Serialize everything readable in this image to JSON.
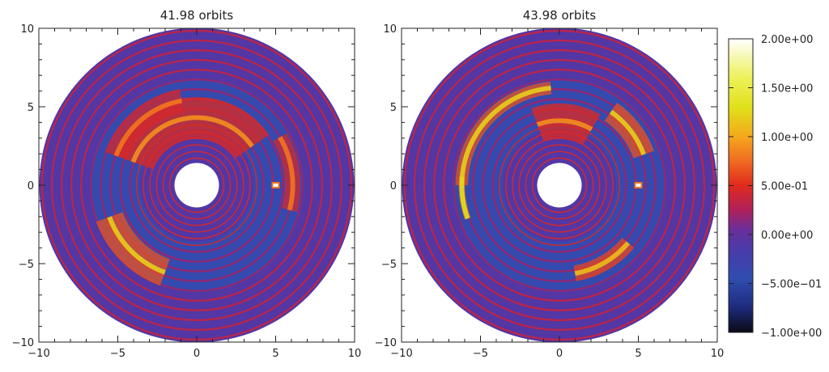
{
  "chart_data": [
    {
      "type": "heatmap",
      "title": "41.98 orbits",
      "xlabel": "",
      "ylabel": "",
      "xlim": [
        -10,
        10
      ],
      "ylim": [
        -10,
        10
      ],
      "xticks": [
        "-10",
        "-5",
        "0",
        "5",
        "10"
      ],
      "yticks": [
        "-10",
        "-5",
        "0",
        "5",
        "10"
      ],
      "disk": {
        "outer_radius": 10,
        "inner_hole_radius": 0.9
      },
      "planet": {
        "x": 5.0,
        "y": 0.0
      },
      "overdense_arcs": [
        {
          "r0": 3.0,
          "r1": 5.6,
          "theta0": 160,
          "theta1": 35,
          "peak": 0.9
        },
        {
          "r0": 5.6,
          "r1": 6.6,
          "theta0": 30,
          "theta1": -15,
          "peak": 0.8
        },
        {
          "r0": 5.0,
          "r1": 6.8,
          "theta0": 200,
          "theta1": 250,
          "peak": 1.2
        },
        {
          "r0": 4.7,
          "r1": 6.2,
          "theta0": 100,
          "theta1": 160,
          "peak": 0.8
        }
      ]
    },
    {
      "type": "heatmap",
      "title": "43.98 orbits",
      "xlabel": "",
      "ylabel": "",
      "xlim": [
        -10,
        10
      ],
      "ylim": [
        -10,
        10
      ],
      "xticks": [
        "-10",
        "-5",
        "0",
        "5",
        "10"
      ],
      "yticks": [
        "-10",
        "-5",
        "0",
        "5",
        "10"
      ],
      "disk": {
        "outer_radius": 10,
        "inner_hole_radius": 0.9
      },
      "planet": {
        "x": 5.0,
        "y": 0.0
      },
      "overdense_arcs": [
        {
          "r0": 5.8,
          "r1": 6.6,
          "theta0": 95,
          "theta1": 180,
          "peak": 1.2
        },
        {
          "r0": 6.0,
          "r1": 6.4,
          "theta0": 175,
          "theta1": 200,
          "peak": 1.3
        },
        {
          "r0": 5.0,
          "r1": 6.4,
          "theta0": 20,
          "theta1": 55,
          "peak": 1.2
        },
        {
          "r0": 5.2,
          "r1": 6.2,
          "theta0": 280,
          "theta1": 320,
          "peak": 1.1
        },
        {
          "r0": 3.0,
          "r1": 5.2,
          "theta0": 60,
          "theta1": 110,
          "peak": 0.9
        }
      ]
    }
  ],
  "colorbar": {
    "min": -1.0,
    "max": 2.0,
    "tick_values": [
      2.0,
      1.5,
      1.0,
      0.5,
      0.0,
      -0.5,
      -1.0
    ],
    "tick_labels": [
      "2.00e+00",
      "1.50e+00",
      "1.00e+00",
      "5.00e-01",
      "0.00e+00",
      "−5.00e−01",
      "−1.00e+00"
    ],
    "colors": [
      {
        "v": -1.0,
        "c": "#0a0a14"
      },
      {
        "v": -0.75,
        "c": "#1d2a7a"
      },
      {
        "v": -0.45,
        "c": "#2f4db0"
      },
      {
        "v": -0.15,
        "c": "#4a3aa8"
      },
      {
        "v": 0.05,
        "c": "#6a2e9a"
      },
      {
        "v": 0.25,
        "c": "#b0205a"
      },
      {
        "v": 0.5,
        "c": "#e02a1e"
      },
      {
        "v": 0.75,
        "c": "#f06a20"
      },
      {
        "v": 1.0,
        "c": "#f4a81c"
      },
      {
        "v": 1.3,
        "c": "#dfe11a"
      },
      {
        "v": 1.6,
        "c": "#eef05a"
      },
      {
        "v": 2.0,
        "c": "#ffffff"
      }
    ]
  }
}
